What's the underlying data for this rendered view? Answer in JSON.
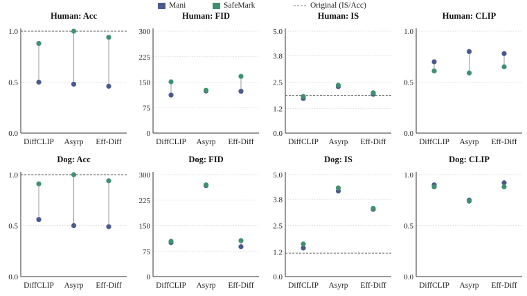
{
  "legend": {
    "mani_label": "Mani",
    "safemark_label": "SafeMark",
    "original_label": "Original (IS/Acc)"
  },
  "colors": {
    "mani": "#4a5a8e",
    "safemark": "#3f9271",
    "connector": "#9a9a9a",
    "reference": "#555555",
    "grid": "#d0d0d0"
  },
  "chart_data": [
    {
      "type": "scatter",
      "title": "Human: Acc",
      "categories": [
        "DiffCLIP",
        "Asyrp",
        "Eff-Diff"
      ],
      "series": [
        {
          "name": "Mani",
          "values": [
            0.5,
            0.48,
            0.46
          ]
        },
        {
          "name": "SafeMark",
          "values": [
            0.88,
            1.0,
            0.94
          ]
        }
      ],
      "ylim": [
        0,
        1
      ],
      "yticks": [
        "0.0",
        "0.5",
        "1.0"
      ],
      "reference_line": 1.0,
      "grid": true
    },
    {
      "type": "scatter",
      "title": "Human: FID",
      "categories": [
        "DiffCLIP",
        "Asyrp",
        "Eff-Diff"
      ],
      "series": [
        {
          "name": "Mani",
          "values": [
            112,
            124,
            123
          ]
        },
        {
          "name": "SafeMark",
          "values": [
            151,
            126,
            167
          ]
        }
      ],
      "ylim": [
        0,
        300
      ],
      "yticks": [
        "0",
        "75",
        "150",
        "225",
        "300"
      ],
      "grid": true
    },
    {
      "type": "scatter",
      "title": "Human: IS",
      "categories": [
        "DiffCLIP",
        "Asyrp",
        "Eff-Diff"
      ],
      "series": [
        {
          "name": "Mani",
          "values": [
            1.7,
            2.28,
            1.9
          ]
        },
        {
          "name": "SafeMark",
          "values": [
            1.8,
            2.35,
            1.98
          ]
        }
      ],
      "ylim": [
        0,
        5
      ],
      "yticks": [
        "0.0",
        "1.2",
        "2.5",
        "3.8",
        "5.0"
      ],
      "reference_line": 1.85,
      "grid": true
    },
    {
      "type": "scatter",
      "title": "Human: CLIP",
      "categories": [
        "DiffCLIP",
        "Asyrp",
        "Eff-Diff"
      ],
      "series": [
        {
          "name": "Mani",
          "values": [
            0.7,
            0.8,
            0.78
          ]
        },
        {
          "name": "SafeMark",
          "values": [
            0.61,
            0.59,
            0.65
          ]
        }
      ],
      "ylim": [
        0,
        1
      ],
      "yticks": [
        "0.0",
        "0.5",
        "1.0"
      ],
      "grid": true
    },
    {
      "type": "scatter",
      "title": "Dog: Acc",
      "categories": [
        "DiffCLIP",
        "Asyrp",
        "Eff-Diff"
      ],
      "series": [
        {
          "name": "Mani",
          "values": [
            0.56,
            0.5,
            0.49
          ]
        },
        {
          "name": "SafeMark",
          "values": [
            0.91,
            1.0,
            0.94
          ]
        }
      ],
      "ylim": [
        0,
        1
      ],
      "yticks": [
        "0.0",
        "0.5",
        "1.0"
      ],
      "reference_line": 1.0,
      "grid": true
    },
    {
      "type": "scatter",
      "title": "Dog: FID",
      "categories": [
        "DiffCLIP",
        "Asyrp",
        "Eff-Diff"
      ],
      "series": [
        {
          "name": "Mani",
          "values": [
            100,
            268,
            88
          ]
        },
        {
          "name": "SafeMark",
          "values": [
            104,
            270,
            106
          ]
        }
      ],
      "ylim": [
        0,
        300
      ],
      "yticks": [
        "0",
        "75",
        "150",
        "225",
        "300"
      ],
      "grid": true
    },
    {
      "type": "scatter",
      "title": "Dog: IS",
      "categories": [
        "DiffCLIP",
        "Asyrp",
        "Eff-Diff"
      ],
      "series": [
        {
          "name": "Mani",
          "values": [
            1.4,
            4.2,
            3.3
          ]
        },
        {
          "name": "SafeMark",
          "values": [
            1.6,
            4.35,
            3.35
          ]
        }
      ],
      "ylim": [
        0,
        5
      ],
      "yticks": [
        "0.0",
        "1.2",
        "2.5",
        "3.8",
        "5.0"
      ],
      "reference_line": 1.15,
      "grid": true
    },
    {
      "type": "scatter",
      "title": "Dog: CLIP",
      "categories": [
        "DiffCLIP",
        "Asyrp",
        "Eff-Diff"
      ],
      "series": [
        {
          "name": "Mani",
          "values": [
            0.9,
            0.75,
            0.92
          ]
        },
        {
          "name": "SafeMark",
          "values": [
            0.88,
            0.74,
            0.88
          ]
        }
      ],
      "ylim": [
        0,
        1
      ],
      "yticks": [
        "0.0",
        "0.5",
        "1.0"
      ],
      "grid": true
    }
  ]
}
